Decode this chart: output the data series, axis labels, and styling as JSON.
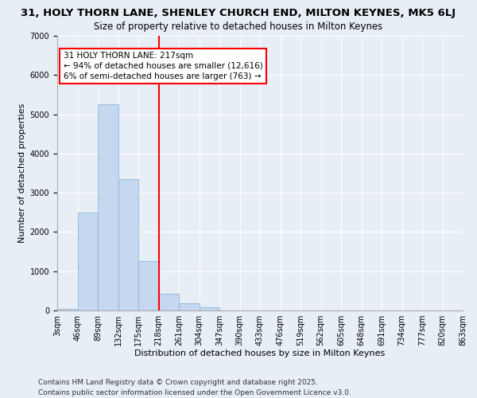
{
  "title": "31, HOLY THORN LANE, SHENLEY CHURCH END, MILTON KEYNES, MK5 6LJ",
  "subtitle": "Size of property relative to detached houses in Milton Keynes",
  "xlabel": "Distribution of detached houses by size in Milton Keynes",
  "ylabel": "Number of detached properties",
  "bins": [
    "3sqm",
    "46sqm",
    "89sqm",
    "132sqm",
    "175sqm",
    "218sqm",
    "261sqm",
    "304sqm",
    "347sqm",
    "390sqm",
    "433sqm",
    "476sqm",
    "519sqm",
    "562sqm",
    "605sqm",
    "648sqm",
    "691sqm",
    "734sqm",
    "777sqm",
    "820sqm",
    "863sqm"
  ],
  "values": [
    50,
    2500,
    5250,
    3350,
    1250,
    425,
    175,
    75,
    0,
    0,
    0,
    0,
    0,
    0,
    0,
    0,
    0,
    0,
    0,
    0
  ],
  "bar_color": "#c5d8f0",
  "bar_edge_color": "#7bafd4",
  "vline_bin_index": 5,
  "vline_color": "red",
  "annotation_text": "31 HOLY THORN LANE: 217sqm\n← 94% of detached houses are smaller (12,616)\n6% of semi-detached houses are larger (763) →",
  "annotation_box_color": "white",
  "annotation_box_edgecolor": "red",
  "ylim": [
    0,
    7000
  ],
  "yticks": [
    0,
    1000,
    2000,
    3000,
    4000,
    5000,
    6000,
    7000
  ],
  "footer_text": "Contains HM Land Registry data © Crown copyright and database right 2025.\nContains public sector information licensed under the Open Government Licence v3.0.",
  "bg_color": "#e8eef6",
  "title_fontsize": 9.5,
  "subtitle_fontsize": 8.5,
  "axis_label_fontsize": 8,
  "tick_fontsize": 7,
  "footer_fontsize": 6.5,
  "annotation_fontsize": 7.5
}
